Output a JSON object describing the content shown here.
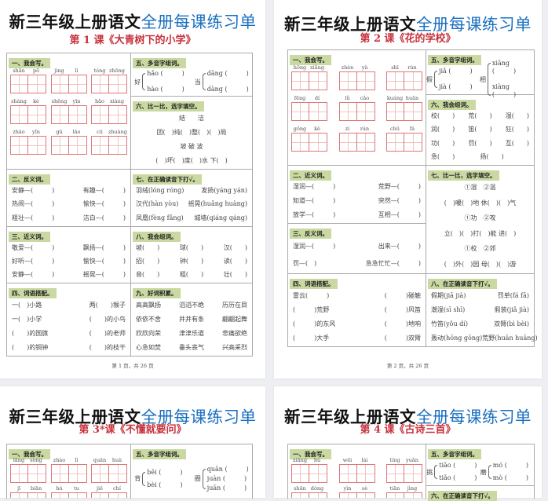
{
  "pages": [
    {
      "title_black": "新三年级上册语文",
      "title_blue": "全册每课练习单",
      "lesson": "第 1 课《大青树下的小学》",
      "footer": "第 1 页，共 26 页",
      "left": [
        {
          "heading": "一、我会写。",
          "type": "grid",
          "pinyin": [
            [
              [
                "shān",
                "pō"
              ],
              [
                "jìng",
                "lì"
              ],
              [
                "tóng",
                "zhōng"
              ]
            ],
            [
              [
                "shàng",
                "kè"
              ],
              [
                "shēng",
                "yīn"
              ],
              [
                "hǎo",
                "xiàng"
              ]
            ],
            [
              [
                "zhāo",
                "yǐn"
              ],
              [
                "gǔ",
                "lǎo"
              ],
              [
                "cū",
                "zhuàng"
              ]
            ]
          ]
        },
        {
          "heading": "二、反义词。",
          "type": "rows",
          "rows": [
            [
              "安静—(　　　)",
              "有趣—(　　　)"
            ],
            [
              "热闹—(　　　)",
              "愉快—(　　　)"
            ],
            [
              "粗壮—(　　　)",
              "洁白—(　　　)"
            ]
          ]
        },
        {
          "heading": "三、近义词。",
          "type": "rows",
          "rows": [
            [
              "敬爱—(　　　)",
              "飘扬—(　　　)"
            ],
            [
              "好听—(　　　)",
              "愉快—(　　　)"
            ],
            [
              "安静—(　　　)",
              "摇晃—(　　　)"
            ]
          ]
        },
        {
          "heading": "四、词语搭配。",
          "type": "rows",
          "rows": [
            [
              "一(　)小路",
              "两(　　)猴子"
            ],
            [
              "一(　)小学",
              "(　　)的小鸟"
            ],
            [
              "(　　)的国旗",
              "(　　)的老师"
            ],
            [
              "(　　)的铜钟",
              "(　　)的枝干"
            ]
          ]
        }
      ],
      "right": [
        {
          "heading": "五、多音字组词。",
          "type": "poly",
          "items": [
            {
              "char": "好",
              "readings": [
                "hǎo (　　　)",
                "hào (　　　)"
              ]
            },
            {
              "char": "当",
              "readings": [
                "dāng (　　　)",
                "dàng (　　　)"
              ]
            }
          ]
        },
        {
          "heading": "六、比一比，选字填空。",
          "type": "rows",
          "center": true,
          "rows": [
            [
              "结　　洁"
            ],
            [
              "团(　)纯(　)整(　)(　)局"
            ],
            [
              "坡 破 波"
            ],
            [
              "(　)坏(　)度(　)水 下(　)"
            ]
          ]
        },
        {
          "heading": "七、在正确读音下打√。",
          "type": "rows",
          "rows": [
            [
              "羽绒(lóng róng)",
              "发扬(yáng yán)"
            ],
            [
              "汉代(hàn yòu)",
              "摇晃(huǎng huàng)"
            ],
            [
              "凤凰(fèng fǎng)",
              "城墙(qiáng qáng)"
            ]
          ]
        },
        {
          "heading": "八、我会组词。",
          "type": "rows",
          "rows": [
            [
              "坡(　　)",
              "球(　　)",
              "汉(　　)"
            ],
            [
              "招(　　)",
              "钟(　　)",
              "读(　　)"
            ],
            [
              "音(　　)",
              "粗(　　)",
              "壮(　　)"
            ]
          ]
        },
        {
          "heading": "九、好词积累。",
          "type": "rows",
          "rows": [
            [
              "高高飘扬",
              "滔滔不绝",
              "历历在目"
            ],
            [
              "依依不舍",
              "井井有条",
              "翩翩起舞"
            ],
            [
              "欣欣向荣",
              "津津乐道",
              "悲痛欲绝"
            ],
            [
              "心急如焚",
              "垂头丧气",
              "兴高采烈"
            ]
          ]
        }
      ]
    },
    {
      "title_black": "新三年级上册语文",
      "title_blue": "全册每课练习单",
      "lesson": "第 2 课《花的学校》",
      "footer": "第 2 页，共 26 页",
      "left": [
        {
          "heading": "一、我会写。",
          "type": "grid",
          "pinyin": [
            [
              [
                "hōng",
                "xiǎng"
              ],
              [
                "zhèn",
                "yǔ"
              ],
              [
                "shī",
                "rùn"
              ]
            ],
            [
              [
                "fēng",
                "dí"
              ],
              [
                "lǜ",
                "cǎo"
              ],
              [
                "kuáng",
                "huān"
              ]
            ],
            [
              [
                "gōng",
                "kè"
              ],
              [
                "zì",
                "rán"
              ],
              [
                "chū",
                "fá"
              ]
            ]
          ]
        },
        {
          "heading": "二、近义词。",
          "type": "rows",
          "rows": [
            [
              "湿润—(　　　)",
              "荒野—(　　　)"
            ],
            [
              "知道—(　　　)",
              "突然—(　　　)"
            ],
            [
              "放学—(　　　)",
              "互相—(　　　)"
            ]
          ]
        },
        {
          "heading": "三、反义词。",
          "type": "rows",
          "rows": [
            [
              "湿润—(　　　)",
              "出来—(　　　)"
            ],
            [
              "罚—(　)",
              "急急忙忙—(　　　)"
            ]
          ]
        },
        {
          "heading": "四、词语搭配。",
          "type": "rows",
          "rows": [
            [
              "雷云(　　　)",
              "(　　　)碰触"
            ],
            [
              "(　　　)荒野",
              "(　　　)风笛"
            ],
            [
              "(　　　)的东风",
              "(　　　)地响"
            ],
            [
              "(　　　)大手",
              "(　　　)双臂"
            ]
          ]
        }
      ],
      "right": [
        {
          "heading": "五、多音字组词。",
          "type": "poly",
          "items": [
            {
              "char": "假",
              "readings": [
                "jiǎ (　　　)",
                "jià (　　　)"
              ]
            },
            {
              "char": "相",
              "readings": [
                "xiāng (　　　)",
                "xiàng (　　　)"
              ]
            }
          ]
        },
        {
          "heading": "六、我会组词。",
          "type": "rows",
          "rows": [
            [
              "校(　　)",
              "荒(　　)",
              "湿(　　)"
            ],
            [
              "润(　　)",
              "笛(　　)",
              "狂(　　)"
            ],
            [
              "功(　　)",
              "罚(　　)",
              "互(　　)"
            ],
            [
              "急(　　)",
              "扬(　　)",
              ""
            ]
          ]
        },
        {
          "heading": "七、比一比，选字填空。",
          "type": "rows",
          "center": true,
          "rows": [
            [
              "①湿　②温"
            ],
            [
              "(　)暖(　)地 休(　)(　)气"
            ],
            [
              "①功　②攻"
            ],
            [
              "立(　)(　)打(　)能 进(　)"
            ],
            [
              "①校　②郊"
            ],
            [
              "(　)外(　)园 母(　)(　)游"
            ]
          ]
        },
        {
          "heading": "八、在正确读音下打√。",
          "type": "rows",
          "rows": [
            [
              "假期(jiā jià)",
              "罚单(fá fā)"
            ],
            [
              "潮湿(sī shī)",
              "假装(jiǎ jià)"
            ],
            [
              "竹笛(yǒu dí)",
              "双臂(bì bèi)"
            ],
            [
              "轰动(hōng gōng)",
              "荒野(huān huāng)"
            ]
          ]
        }
      ]
    },
    {
      "title_black": "新三年级上册语文",
      "title_blue": "全册每课练习单",
      "lesson": "第 3*课《不懂就要问》",
      "left": [
        {
          "heading": "一、我会写。",
          "type": "grid",
          "pinyin": [
            [
              [
                "lǎng",
                "sòng"
              ],
              [
                "zhào",
                "lì"
              ],
              [
                "quān",
                "huà"
              ]
            ],
            [
              [
                "jī",
                "biān"
              ],
              [
                "hú",
                "tu"
              ],
              [
                "jiě",
                "chí"
              ]
            ]
          ]
        }
      ],
      "right": [
        {
          "heading": "五、多音字组词。",
          "type": "poly",
          "items": [
            {
              "char": "背",
              "readings": [
                "bēi (　　　)",
                "bèi (　　　)"
              ]
            },
            {
              "char": "圈",
              "readings": [
                "quān (　　　)",
                "juàn (　　　)",
                "juān (　　　)"
              ]
            }
          ]
        }
      ]
    },
    {
      "title_black": "新三年级上册语文",
      "title_blue": "全册每课练习单",
      "lesson": "第 4 课《古诗三首》",
      "left": [
        {
          "heading": "一、我会写。",
          "type": "grid",
          "pinyin": [
            [
              [
                "xiāng",
                "hù"
              ],
              [
                "wēi",
                "lái"
              ],
              [
                "tíng",
                "yuǎn"
              ]
            ],
            [
              [
                "shān",
                "dòng"
              ],
              [
                "yìn",
                "sè"
              ],
              [
                "tiān",
                "jìng"
              ]
            ]
          ]
        }
      ],
      "right": [
        {
          "heading": "五、多音字组词。",
          "type": "poly",
          "items": [
            {
              "char": "挑",
              "readings": [
                "tiāo (　　　)",
                "tiǎo (　　　)"
              ]
            },
            {
              "char": "磨",
              "readings": [
                "mó (　　　)",
                "mò (　　　)"
              ]
            }
          ]
        },
        {
          "heading": "六、在正确读音下打√。",
          "type": "rows",
          "rows": []
        }
      ]
    }
  ],
  "colors": {
    "title_blue": "#1a6fc0",
    "lesson_red": "#c8323c",
    "heading_bg": "#c9d9a1",
    "grid_red": "#dd7777"
  }
}
